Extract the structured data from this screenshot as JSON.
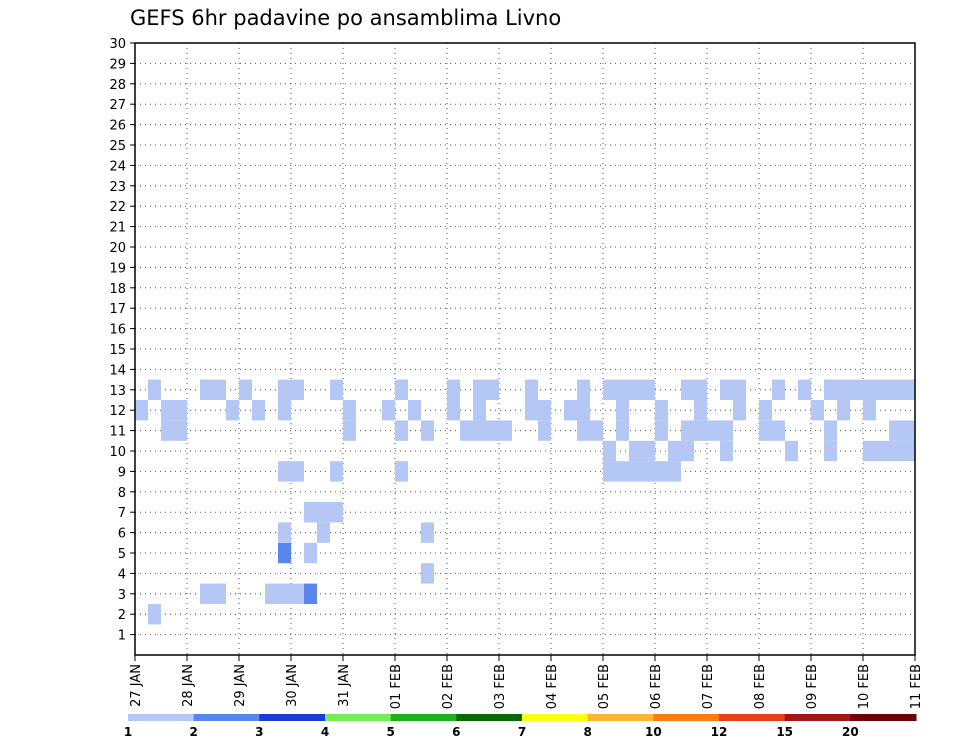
{
  "chart_data": {
    "type": "heatmap",
    "title": "GEFS 6hr padavine po ansamblima Livno",
    "x_ticks": [
      "27 JAN",
      "28 JAN",
      "29 JAN",
      "30 JAN",
      "31 JAN",
      "01 FEB",
      "02 FEB",
      "03 FEB",
      "04 FEB",
      "05 FEB",
      "06 FEB",
      "07 FEB",
      "08 FEB",
      "09 FEB",
      "10 FEB",
      "11 FEB"
    ],
    "y_ticks": [
      "1",
      "2",
      "3",
      "4",
      "5",
      "6",
      "7",
      "8",
      "9",
      "10",
      "11",
      "12",
      "13",
      "14",
      "15",
      "16",
      "17",
      "18",
      "19",
      "20",
      "21",
      "22",
      "23",
      "24",
      "25",
      "26",
      "27",
      "28",
      "29",
      "30"
    ],
    "xlim": [
      "27 JAN",
      "11 FEB"
    ],
    "ylim": [
      0,
      30
    ],
    "grid": true,
    "legend": {
      "placement": "bottom",
      "labels": [
        "1",
        "2",
        "3",
        "4",
        "5",
        "6",
        "7",
        "8",
        "10",
        "12",
        "15",
        "20"
      ],
      "colors": [
        "#b4c7f5",
        "#5a84ee",
        "#1a3bd8",
        "#73ee55",
        "#1bb21b",
        "#0a6a0a",
        "#ffff14",
        "#ffb432",
        "#ff7c12",
        "#e5401a",
        "#a51616",
        "#6e0202"
      ]
    },
    "cells": [
      [
        1,
        2,
        "#b4c7f5"
      ],
      [
        5,
        3,
        "#b4c7f5"
      ],
      [
        6,
        3,
        "#b4c7f5"
      ],
      [
        10,
        3,
        "#b4c7f5"
      ],
      [
        11,
        3,
        "#b4c7f5"
      ],
      [
        12,
        3,
        "#b4c7f5"
      ],
      [
        13,
        3,
        "#5a84ee"
      ],
      [
        22,
        4,
        "#b4c7f5"
      ],
      [
        11,
        5,
        "#5a84ee"
      ],
      [
        13,
        5,
        "#b4c7f5"
      ],
      [
        11,
        6,
        "#b4c7f5"
      ],
      [
        14,
        6,
        "#b4c7f5"
      ],
      [
        22,
        6,
        "#b4c7f5"
      ],
      [
        13,
        7,
        "#b4c7f5"
      ],
      [
        14,
        7,
        "#b4c7f5"
      ],
      [
        15,
        7,
        "#b4c7f5"
      ],
      [
        11,
        9,
        "#b4c7f5"
      ],
      [
        12,
        9,
        "#b4c7f5"
      ],
      [
        15,
        9,
        "#b4c7f5"
      ],
      [
        20,
        9,
        "#b4c7f5"
      ],
      [
        36,
        10,
        "#b4c7f5"
      ],
      [
        38,
        10,
        "#b4c7f5"
      ],
      [
        39,
        10,
        "#b4c7f5"
      ],
      [
        41,
        10,
        "#b4c7f5"
      ],
      [
        42,
        10,
        "#b4c7f5"
      ],
      [
        45,
        10,
        "#b4c7f5"
      ],
      [
        50,
        10,
        "#b4c7f5"
      ],
      [
        53,
        10,
        "#b4c7f5"
      ],
      [
        56,
        10,
        "#b4c7f5"
      ],
      [
        57,
        10,
        "#b4c7f5"
      ],
      [
        58,
        10,
        "#b4c7f5"
      ],
      [
        59,
        10,
        "#b4c7f5"
      ],
      [
        2,
        11,
        "#b4c7f5"
      ],
      [
        3,
        11,
        "#b4c7f5"
      ],
      [
        16,
        11,
        "#b4c7f5"
      ],
      [
        20,
        11,
        "#b4c7f5"
      ],
      [
        22,
        11,
        "#b4c7f5"
      ],
      [
        25,
        11,
        "#b4c7f5"
      ],
      [
        26,
        11,
        "#b4c7f5"
      ],
      [
        27,
        11,
        "#b4c7f5"
      ],
      [
        28,
        11,
        "#b4c7f5"
      ],
      [
        31,
        11,
        "#b4c7f5"
      ],
      [
        34,
        11,
        "#b4c7f5"
      ],
      [
        35,
        11,
        "#b4c7f5"
      ],
      [
        37,
        11,
        "#b4c7f5"
      ],
      [
        40,
        11,
        "#b4c7f5"
      ],
      [
        42,
        11,
        "#b4c7f5"
      ],
      [
        43,
        11,
        "#b4c7f5"
      ],
      [
        44,
        11,
        "#b4c7f5"
      ],
      [
        45,
        11,
        "#b4c7f5"
      ],
      [
        48,
        11,
        "#b4c7f5"
      ],
      [
        49,
        11,
        "#b4c7f5"
      ],
      [
        53,
        11,
        "#b4c7f5"
      ],
      [
        58,
        11,
        "#b4c7f5"
      ],
      [
        59,
        11,
        "#b4c7f5"
      ],
      [
        0,
        12,
        "#b4c7f5"
      ],
      [
        2,
        12,
        "#b4c7f5"
      ],
      [
        3,
        12,
        "#b4c7f5"
      ],
      [
        7,
        12,
        "#b4c7f5"
      ],
      [
        9,
        12,
        "#b4c7f5"
      ],
      [
        11,
        12,
        "#b4c7f5"
      ],
      [
        16,
        12,
        "#b4c7f5"
      ],
      [
        19,
        12,
        "#b4c7f5"
      ],
      [
        21,
        12,
        "#b4c7f5"
      ],
      [
        24,
        12,
        "#b4c7f5"
      ],
      [
        26,
        12,
        "#b4c7f5"
      ],
      [
        30,
        12,
        "#b4c7f5"
      ],
      [
        31,
        12,
        "#b4c7f5"
      ],
      [
        33,
        12,
        "#b4c7f5"
      ],
      [
        34,
        12,
        "#b4c7f5"
      ],
      [
        37,
        12,
        "#b4c7f5"
      ],
      [
        40,
        12,
        "#b4c7f5"
      ],
      [
        43,
        12,
        "#b4c7f5"
      ],
      [
        46,
        12,
        "#b4c7f5"
      ],
      [
        48,
        12,
        "#b4c7f5"
      ],
      [
        52,
        12,
        "#b4c7f5"
      ],
      [
        54,
        12,
        "#b4c7f5"
      ],
      [
        56,
        12,
        "#b4c7f5"
      ],
      [
        1,
        13,
        "#b4c7f5"
      ],
      [
        5,
        13,
        "#b4c7f5"
      ],
      [
        6,
        13,
        "#b4c7f5"
      ],
      [
        8,
        13,
        "#b4c7f5"
      ],
      [
        11,
        13,
        "#b4c7f5"
      ],
      [
        12,
        13,
        "#b4c7f5"
      ],
      [
        15,
        13,
        "#b4c7f5"
      ],
      [
        20,
        13,
        "#b4c7f5"
      ],
      [
        24,
        13,
        "#b4c7f5"
      ],
      [
        26,
        13,
        "#b4c7f5"
      ],
      [
        27,
        13,
        "#b4c7f5"
      ],
      [
        30,
        13,
        "#b4c7f5"
      ],
      [
        34,
        13,
        "#b4c7f5"
      ],
      [
        36,
        13,
        "#b4c7f5"
      ],
      [
        37,
        13,
        "#b4c7f5"
      ],
      [
        38,
        13,
        "#b4c7f5"
      ],
      [
        39,
        13,
        "#b4c7f5"
      ],
      [
        42,
        13,
        "#b4c7f5"
      ],
      [
        43,
        13,
        "#b4c7f5"
      ],
      [
        45,
        13,
        "#b4c7f5"
      ],
      [
        46,
        13,
        "#b4c7f5"
      ],
      [
        49,
        13,
        "#b4c7f5"
      ],
      [
        51,
        13,
        "#b4c7f5"
      ],
      [
        53,
        13,
        "#b4c7f5"
      ],
      [
        54,
        13,
        "#b4c7f5"
      ],
      [
        55,
        13,
        "#b4c7f5"
      ],
      [
        56,
        13,
        "#b4c7f5"
      ],
      [
        57,
        13,
        "#b4c7f5"
      ],
      [
        58,
        13,
        "#b4c7f5"
      ],
      [
        59,
        13,
        "#b4c7f5"
      ],
      [
        36,
        9,
        "#b4c7f5"
      ],
      [
        37,
        9,
        "#b4c7f5"
      ],
      [
        38,
        9,
        "#b4c7f5"
      ],
      [
        39,
        9,
        "#b4c7f5"
      ],
      [
        40,
        9,
        "#b4c7f5"
      ],
      [
        41,
        9,
        "#b4c7f5"
      ]
    ]
  }
}
